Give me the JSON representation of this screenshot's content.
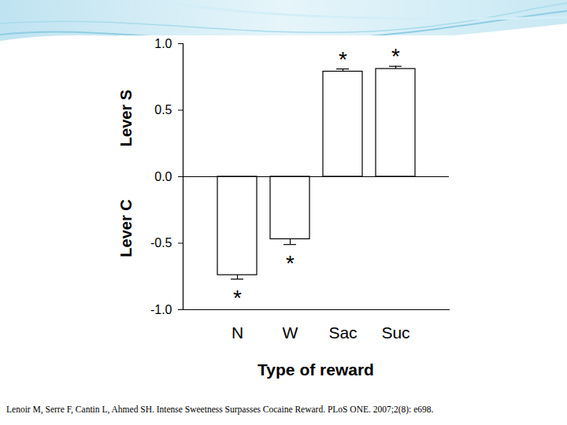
{
  "chart_data": {
    "type": "bar",
    "categories": [
      "N",
      "W",
      "Sac",
      "Suc"
    ],
    "values": [
      -0.74,
      -0.47,
      0.79,
      0.81
    ],
    "errors": [
      0.03,
      0.04,
      0.02,
      0.02
    ],
    "significance": [
      "*",
      "*",
      "*",
      "*"
    ],
    "color": "#ffffff",
    "ylim": [
      -1.0,
      1.0
    ],
    "yticks": [
      {
        "value": -1.0,
        "label": "-1.0"
      },
      {
        "value": -0.5,
        "label": "-0.5"
      },
      {
        "value": 0.0,
        "label": "0.0"
      },
      {
        "value": 0.5,
        "label": "0.5"
      },
      {
        "value": 1.0,
        "label": "1.0"
      }
    ],
    "ylabel_top": "Lever S",
    "ylabel_bottom": "Lever C",
    "xlabel": "Type of reward",
    "caption": "Lenoir M, Serre F, Cantin L, Ahmed SH. Intense Sweetness Surpasses Cocaine Reward. PLoS ONE. 2007;2(8): e698.",
    "grid": false
  }
}
